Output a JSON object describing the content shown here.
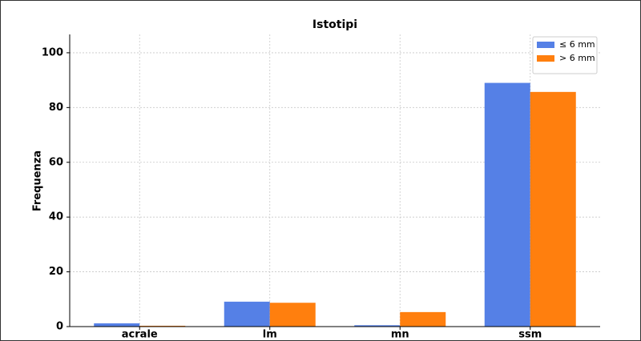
{
  "chart_data": {
    "type": "bar",
    "title": "Istotipi",
    "y_label": "Frequenza",
    "categories": [
      "acrale",
      "lm",
      "mn",
      "ssm"
    ],
    "series": [
      {
        "name": "≤ 6 mm",
        "color": "#5580e6",
        "values": [
          1.2,
          9.1,
          0.5,
          89.0
        ]
      },
      {
        "name": "> 6 mm",
        "color": "#ff7f0e",
        "values": [
          0.3,
          8.7,
          5.3,
          85.7
        ]
      }
    ],
    "ylim": [
      0,
      106.7
    ],
    "yticks": [
      0,
      20,
      40,
      60,
      80,
      100
    ],
    "grid": true,
    "legend": "upper right"
  }
}
